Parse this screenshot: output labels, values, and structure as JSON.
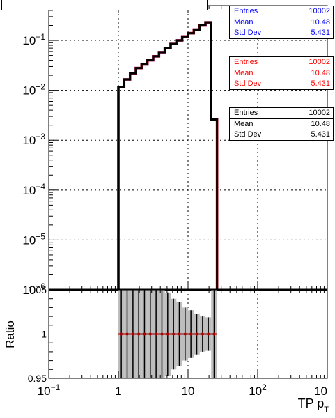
{
  "chart_data": [
    {
      "panel": "main",
      "type": "line",
      "xscale": "log",
      "yscale": "log",
      "xlim": [
        0.1,
        1000
      ],
      "ylim": [
        1e-06,
        0.5
      ],
      "grid": true,
      "yticks": [
        {
          "base": "10",
          "exp": "−1",
          "v": 0.1
        },
        {
          "base": "10",
          "exp": "−2",
          "v": 0.01
        },
        {
          "base": "10",
          "exp": "−3",
          "v": 0.001
        },
        {
          "base": "10",
          "exp": "−4",
          "v": 0.0001
        },
        {
          "base": "10",
          "exp": "−5",
          "v": 1e-05
        },
        {
          "base": "10",
          "exp": "−6",
          "v": 1e-06
        }
      ],
      "bin_edges": [
        1,
        1.21,
        1.47,
        1.78,
        2.15,
        2.61,
        3.16,
        3.83,
        4.64,
        5.62,
        6.81,
        8.25,
        10,
        12.1,
        14.7,
        17.8,
        21.5,
        26.1
      ],
      "values": [
        0.0115,
        0.0165,
        0.022,
        0.028,
        0.033,
        0.04,
        0.048,
        0.058,
        0.07,
        0.085,
        0.1,
        0.12,
        0.14,
        0.165,
        0.2,
        0.23,
        0.0026
      ],
      "series": [
        {
          "name": "blue",
          "color": "#0000ff"
        },
        {
          "name": "red",
          "color": "#ff0000"
        },
        {
          "name": "black",
          "color": "#000000"
        }
      ],
      "stat_boxes": [
        {
          "color": "#0000ff",
          "rows": [
            [
              "Entries",
              "10002"
            ],
            [
              "Mean",
              "10.48"
            ],
            [
              "Std Dev",
              "5.431"
            ]
          ]
        },
        {
          "color": "#ff0000",
          "rows": [
            [
              "Entries",
              "10002"
            ],
            [
              "Mean",
              "10.48"
            ],
            [
              "Std Dev",
              "5.431"
            ]
          ]
        },
        {
          "color": "#000000",
          "rows": [
            [
              "Entries",
              "10002"
            ],
            [
              "Mean",
              "10.48"
            ],
            [
              "Std Dev",
              "5.431"
            ]
          ]
        }
      ]
    },
    {
      "panel": "ratio",
      "type": "scatter",
      "xscale": "log",
      "xlim": [
        0.1,
        1000
      ],
      "ylim": [
        0.95,
        1.05
      ],
      "ylabel": "Ratio",
      "xlabel": "TP p",
      "xlabel_sub": "T",
      "yticks": [
        {
          "label": "0.95",
          "v": 0.95
        },
        {
          "label": "1",
          "v": 1.0
        },
        {
          "label": "1.05",
          "v": 1.05
        }
      ],
      "xticks": [
        {
          "base": "10",
          "exp": "−1",
          "v": 0.1
        },
        {
          "label": "1",
          "v": 1
        },
        {
          "label": "10",
          "v": 10
        },
        {
          "base": "10",
          "exp": "2",
          "v": 100
        },
        {
          "base": "10",
          "exp": "",
          "v": 1000
        }
      ],
      "bin_edges": [
        1,
        1.21,
        1.47,
        1.78,
        2.15,
        2.61,
        3.16,
        3.83,
        4.64,
        5.62,
        6.81,
        8.25,
        10,
        12.1,
        14.7,
        17.8,
        21.5,
        26.1
      ],
      "values": [
        1,
        1,
        1,
        1,
        1,
        1,
        1,
        1,
        1,
        1,
        1,
        1,
        1,
        1,
        1,
        1,
        1
      ],
      "error_halfwidth": [
        0.06,
        0.06,
        0.06,
        0.06,
        0.06,
        0.06,
        0.06,
        0.055,
        0.047,
        0.04,
        0.036,
        0.03,
        0.027,
        0.023,
        0.02,
        0.019,
        0.06
      ]
    }
  ]
}
